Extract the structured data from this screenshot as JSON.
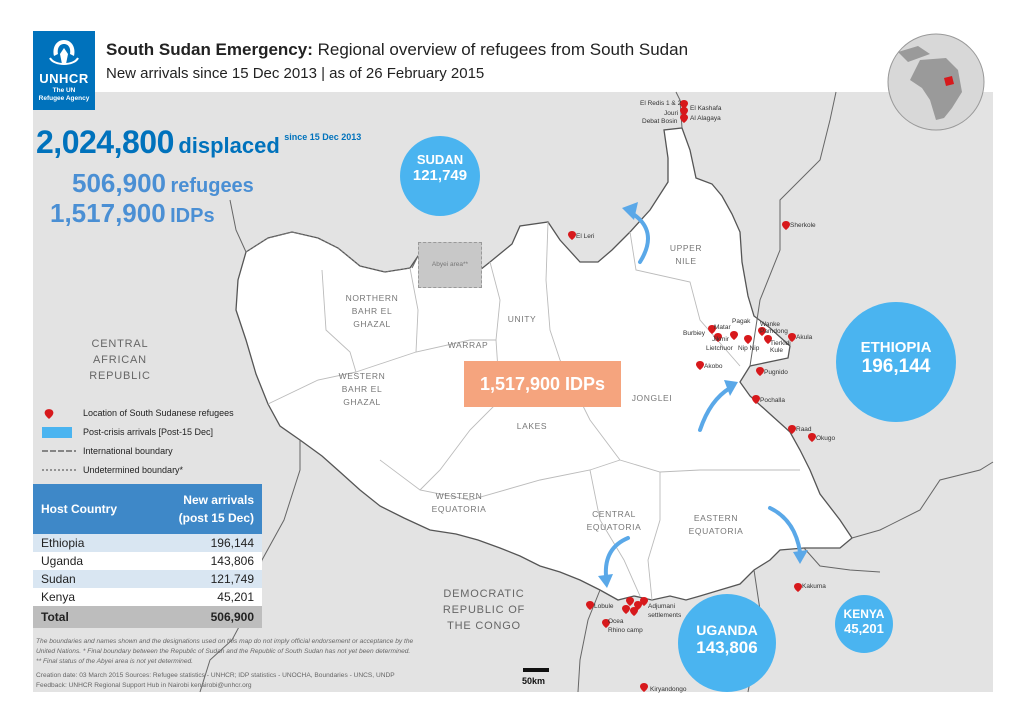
{
  "header": {
    "logo": {
      "name": "UNHCR",
      "sub1": "The UN",
      "sub2": "Refugee Agency"
    },
    "title_bold": "South Sudan Emergency:",
    "title_rest": " Regional overview of refugees from South Sudan",
    "subtitle": "New arrivals since 15 Dec 2013 | as of 26 February 2015"
  },
  "stats": {
    "displaced": {
      "value": "2,024,800",
      "label": "displaced",
      "since": "since 15 Dec 2013"
    },
    "refugees": {
      "value": "506,900",
      "label": "refugees"
    },
    "idps": {
      "value": "1,517,900",
      "label": "IDPs"
    }
  },
  "idp_box": "1,517,900 IDPs",
  "abyei": "Abyei area**",
  "bubbles": [
    {
      "name": "SUDAN",
      "value": "121,749"
    },
    {
      "name": "ETHIOPIA",
      "value": "196,144"
    },
    {
      "name": "UGANDA",
      "value": "143,806"
    },
    {
      "name": "KENYA",
      "value": "45,201"
    }
  ],
  "regions": {
    "upper_nile": [
      "UPPER",
      "NILE"
    ],
    "northern_bahr": [
      "NORTHERN",
      "BAHR EL",
      "GHAZAL"
    ],
    "unity": [
      "UNITY"
    ],
    "warrap": [
      "WARRAP"
    ],
    "western_bahr": [
      "WESTERN",
      "BAHR EL",
      "GHAZAL"
    ],
    "jonglei": [
      "JONGLEI"
    ],
    "lakes": [
      "LAKES"
    ],
    "western_equatoria": [
      "WESTERN",
      "EQUATORIA"
    ],
    "central_equatoria": [
      "CENTRAL",
      "EQUATORIA"
    ],
    "eastern_equatoria": [
      "EASTERN",
      "EQUATORIA"
    ]
  },
  "countries": {
    "car": [
      "CENTRAL",
      "AFRICAN",
      "REPUBLIC"
    ],
    "drc": [
      "DEMOCRATIC",
      "REPUBLIC OF",
      "THE CONGO"
    ]
  },
  "places": {
    "el_redis": "El Redis 1 & 2",
    "el_kashafa": "El Kashafa",
    "jouri": "Jouri",
    "debat_bosin": "Debat Bosin",
    "al_alagaya": "Al Alagaya",
    "el_leri": "El Leri",
    "sherkole": "Sherkole",
    "pagak": "Pagak",
    "matar": "Matar",
    "wanke": "Wanke",
    "pamdong": "Pamdong",
    "burbiey": "Burbiey",
    "jikmir": "Jikmir",
    "lietchuor": "Lietchuor",
    "nip_nip": "Nip Nip",
    "tierkidi": "Tierkidi",
    "kule": "Kule",
    "akula": "Akula",
    "akobo": "Akobo",
    "pugnido": "Pugnido",
    "pochalla": "Pochalla",
    "raad": "Raad",
    "okugo": "Okugo",
    "kakuma": "Kakuma",
    "lobule": "Lobule",
    "adjumani": "Adjumani",
    "settlements": "settlements",
    "ocea": "Ocea",
    "rhino_camp": "Rhino camp",
    "kiryandongo": "Kiryandongo"
  },
  "legend": [
    {
      "icon": "pin-icon",
      "label": "Location of South Sudanese refugees"
    },
    {
      "icon": "swatch-blue",
      "label": "Post-crisis arrivals [Post-15 Dec]"
    },
    {
      "icon": "line-international",
      "label": "International boundary"
    },
    {
      "icon": "line-undetermined",
      "label": "Undetermined boundary*"
    }
  ],
  "table": {
    "col_country": "Host Country",
    "col_new": [
      "New arrivals",
      "(post 15 Dec)"
    ],
    "rows": [
      {
        "country": "Ethiopia",
        "value": "196,144"
      },
      {
        "country": "Uganda",
        "value": "143,806"
      },
      {
        "country": "Sudan",
        "value": "121,749"
      },
      {
        "country": "Kenya",
        "value": "45,201"
      }
    ],
    "total": {
      "country": "Total",
      "value": "506,900"
    }
  },
  "disclaimer": "The boundaries and names shown and the designations used on this map do not imply official endorsement or acceptance by the United Nations. * Final boundary between the Republic of Sudan and the Republic of South Sudan has not yet been determined. ** Final status of the Abyei area is not yet determined.",
  "credits": "Creation date: 03 March 2015   Sources: Refugee statistics - UNHCR; IDP statistics - UNOCHA, Boundaries - UNCS, UNDP Feedback: UNHCR Regional Support Hub in Nairobi kenairobi@unhcr.org",
  "scale": "50km",
  "colors": {
    "unhcr_blue": "#0072bc",
    "bubble": "#4ab4f0",
    "idp_orange": "#f5a47e",
    "pin": "#d7191c",
    "table_head": "#3e88c8"
  }
}
